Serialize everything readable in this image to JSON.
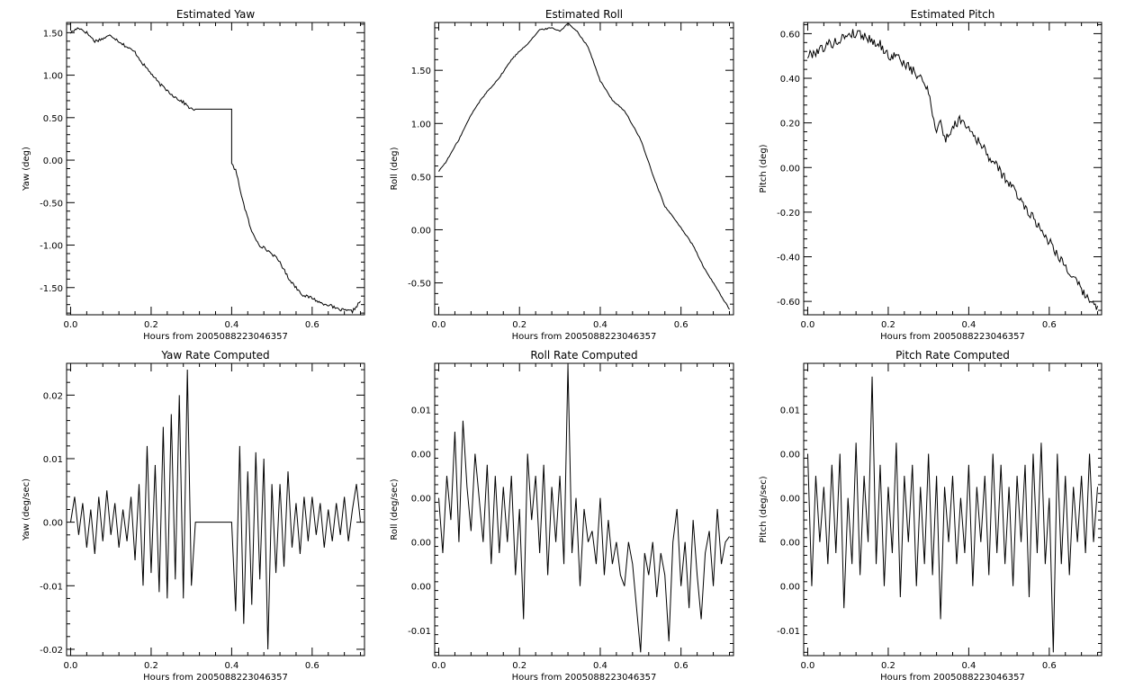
{
  "chart_data": [
    {
      "type": "line",
      "title": "Estimated Yaw",
      "xlabel": "Hours from 2005088223046357",
      "ylabel": "Yaw (deg)",
      "xlim": [
        -0.01,
        0.73
      ],
      "ylim": [
        -1.82,
        1.62
      ],
      "xticks": [
        0.0,
        0.2,
        0.4,
        0.6
      ],
      "xtick_labels": [
        "0.0",
        "0.2",
        "0.4",
        "0.6"
      ],
      "yticks": [
        1.5,
        1.0,
        0.5,
        0.0,
        -0.5,
        -1.0,
        -1.5
      ],
      "ytick_labels": [
        "1.50",
        "1.00",
        "0.50",
        "0.00",
        "-0.50",
        "-1.00",
        "-1.50"
      ],
      "noise": 0.018,
      "series": [
        {
          "x": [
            0.0,
            0.02,
            0.04,
            0.06,
            0.08,
            0.1,
            0.12,
            0.14,
            0.16,
            0.18,
            0.2,
            0.22,
            0.24,
            0.26,
            0.28,
            0.3,
            0.31,
            0.35,
            0.4,
            0.4,
            0.41,
            0.43,
            0.45,
            0.47,
            0.5,
            0.52,
            0.54,
            0.56,
            0.58,
            0.6,
            0.62,
            0.64,
            0.66,
            0.68,
            0.7,
            0.72
          ],
          "values": [
            1.5,
            1.56,
            1.5,
            1.4,
            1.43,
            1.47,
            1.4,
            1.33,
            1.27,
            1.13,
            1.02,
            0.9,
            0.82,
            0.74,
            0.68,
            0.6,
            0.6,
            0.6,
            0.6,
            -0.05,
            -0.12,
            -0.52,
            -0.85,
            -1.0,
            -1.1,
            -1.2,
            -1.38,
            -1.5,
            -1.6,
            -1.62,
            -1.68,
            -1.7,
            -1.75,
            -1.77,
            -1.78,
            -1.66
          ]
        }
      ]
    },
    {
      "type": "line",
      "title": "Estimated Roll",
      "xlabel": "Hours from 2005088223046357",
      "ylabel": "Roll (deg)",
      "xlim": [
        -0.01,
        0.73
      ],
      "ylim": [
        -0.8,
        1.95
      ],
      "xticks": [
        0.0,
        0.2,
        0.4,
        0.6
      ],
      "xtick_labels": [
        "0.0",
        "0.2",
        "0.4",
        "0.6"
      ],
      "yticks": [
        1.5,
        1.0,
        0.5,
        0.0,
        -0.5
      ],
      "ytick_labels": [
        "1.50",
        "1.00",
        "0.50",
        "0.00",
        "-0.50"
      ],
      "noise": 0.006,
      "series": [
        {
          "x": [
            0.0,
            0.02,
            0.05,
            0.08,
            0.1,
            0.12,
            0.15,
            0.18,
            0.2,
            0.22,
            0.25,
            0.28,
            0.3,
            0.32,
            0.34,
            0.37,
            0.4,
            0.43,
            0.46,
            0.5,
            0.53,
            0.56,
            0.6,
            0.63,
            0.66,
            0.69,
            0.72
          ],
          "values": [
            0.55,
            0.65,
            0.85,
            1.08,
            1.2,
            1.3,
            1.43,
            1.6,
            1.68,
            1.75,
            1.88,
            1.9,
            1.87,
            1.94,
            1.88,
            1.72,
            1.4,
            1.22,
            1.12,
            0.85,
            0.52,
            0.22,
            0.02,
            -0.15,
            -0.38,
            -0.56,
            -0.75
          ]
        }
      ]
    },
    {
      "type": "line",
      "title": "Estimated Pitch",
      "xlabel": "Hours from 2005088223046357",
      "ylabel": "Pitch (deg)",
      "xlim": [
        -0.01,
        0.73
      ],
      "ylim": [
        -0.66,
        0.65
      ],
      "xticks": [
        0.0,
        0.2,
        0.4,
        0.6
      ],
      "xtick_labels": [
        "0.0",
        "0.2",
        "0.4",
        "0.6"
      ],
      "yticks": [
        0.6,
        0.4,
        0.2,
        0.0,
        -0.2,
        -0.4,
        -0.6
      ],
      "ytick_labels": [
        "0.60",
        "0.40",
        "0.20",
        "0.00",
        "-0.20",
        "-0.40",
        "-0.60"
      ],
      "noise": 0.022,
      "series": [
        {
          "x": [
            0.0,
            0.02,
            0.05,
            0.08,
            0.1,
            0.13,
            0.15,
            0.18,
            0.2,
            0.22,
            0.25,
            0.28,
            0.3,
            0.31,
            0.32,
            0.33,
            0.34,
            0.36,
            0.38,
            0.4,
            0.45,
            0.5,
            0.55,
            0.6,
            0.65,
            0.68,
            0.7,
            0.72
          ],
          "values": [
            0.5,
            0.52,
            0.55,
            0.57,
            0.6,
            0.6,
            0.58,
            0.55,
            0.5,
            0.5,
            0.45,
            0.4,
            0.35,
            0.25,
            0.15,
            0.22,
            0.12,
            0.18,
            0.22,
            0.18,
            0.05,
            -0.07,
            -0.2,
            -0.33,
            -0.47,
            -0.55,
            -0.6,
            -0.62
          ]
        }
      ]
    },
    {
      "type": "line",
      "title": "Yaw Rate Computed",
      "xlabel": "Hours from 2005088223046357",
      "ylabel": "Yaw (deg/sec)",
      "xlim": [
        -0.01,
        0.73
      ],
      "ylim": [
        -0.021,
        0.025
      ],
      "xticks": [
        0.0,
        0.2,
        0.4,
        0.6
      ],
      "xtick_labels": [
        "0.0",
        "0.2",
        "0.4",
        "0.6"
      ],
      "yticks": [
        0.02,
        0.01,
        0.0,
        -0.01,
        -0.02
      ],
      "ytick_labels": [
        "0.02",
        "0.01",
        "0.00",
        "-0.01",
        "-0.02"
      ],
      "series": [
        {
          "x": [
            0.0,
            0.01,
            0.02,
            0.03,
            0.04,
            0.05,
            0.06,
            0.07,
            0.08,
            0.09,
            0.1,
            0.11,
            0.12,
            0.13,
            0.14,
            0.15,
            0.16,
            0.17,
            0.18,
            0.19,
            0.2,
            0.21,
            0.22,
            0.23,
            0.24,
            0.25,
            0.26,
            0.27,
            0.28,
            0.29,
            0.3,
            0.31,
            0.35,
            0.4,
            0.41,
            0.42,
            0.43,
            0.44,
            0.45,
            0.46,
            0.47,
            0.48,
            0.49,
            0.5,
            0.51,
            0.52,
            0.53,
            0.54,
            0.55,
            0.56,
            0.57,
            0.58,
            0.59,
            0.6,
            0.61,
            0.62,
            0.63,
            0.64,
            0.65,
            0.66,
            0.67,
            0.68,
            0.69,
            0.7,
            0.71,
            0.72
          ],
          "values": [
            0.0,
            0.004,
            -0.002,
            0.003,
            -0.004,
            0.002,
            -0.005,
            0.004,
            -0.003,
            0.005,
            -0.002,
            0.003,
            -0.004,
            0.002,
            -0.003,
            0.004,
            -0.006,
            0.006,
            -0.01,
            0.012,
            -0.008,
            0.009,
            -0.011,
            0.015,
            -0.012,
            0.017,
            -0.009,
            0.02,
            -0.012,
            0.024,
            -0.01,
            0.0,
            0.0,
            0.0,
            -0.014,
            0.012,
            -0.016,
            0.008,
            -0.013,
            0.011,
            -0.009,
            0.01,
            -0.02,
            0.006,
            -0.008,
            0.006,
            -0.007,
            0.008,
            -0.004,
            0.003,
            -0.005,
            0.004,
            -0.003,
            0.004,
            -0.002,
            0.003,
            -0.004,
            0.002,
            -0.003,
            0.003,
            -0.002,
            0.004,
            -0.003,
            0.002,
            0.006,
            0.0
          ]
        }
      ]
    },
    {
      "type": "line",
      "title": "Roll Rate Computed",
      "xlabel": "Hours from 2005088223046357",
      "ylabel": "Roll (deg/sec)",
      "xlim": [
        -0.01,
        0.73
      ],
      "ylim": [
        -0.0123,
        0.0142
      ],
      "xticks": [
        0.0,
        0.2,
        0.4,
        0.6
      ],
      "xtick_labels": [
        "0.0",
        "0.2",
        "0.4",
        "0.6"
      ],
      "yticks": [
        0.01,
        0.006,
        0.002,
        -0.002,
        -0.006,
        -0.01
      ],
      "ytick_labels": [
        "0.01",
        "0.00",
        "0.00",
        "0.00",
        "0.00",
        "-0.01"
      ],
      "series": [
        {
          "x": [
            0.0,
            0.01,
            0.02,
            0.03,
            0.04,
            0.05,
            0.06,
            0.07,
            0.08,
            0.09,
            0.1,
            0.11,
            0.12,
            0.13,
            0.14,
            0.15,
            0.16,
            0.17,
            0.18,
            0.19,
            0.2,
            0.21,
            0.22,
            0.23,
            0.24,
            0.25,
            0.26,
            0.27,
            0.28,
            0.29,
            0.3,
            0.31,
            0.32,
            0.33,
            0.34,
            0.35,
            0.36,
            0.37,
            0.38,
            0.39,
            0.4,
            0.41,
            0.42,
            0.43,
            0.44,
            0.45,
            0.46,
            0.47,
            0.48,
            0.49,
            0.5,
            0.51,
            0.52,
            0.53,
            0.54,
            0.55,
            0.56,
            0.57,
            0.58,
            0.59,
            0.6,
            0.61,
            0.62,
            0.63,
            0.64,
            0.65,
            0.66,
            0.67,
            0.68,
            0.69,
            0.7,
            0.71,
            0.72
          ],
          "values": [
            0.002,
            -0.003,
            0.004,
            0.0,
            0.008,
            -0.002,
            0.009,
            0.003,
            -0.001,
            0.006,
            0.002,
            -0.002,
            0.005,
            -0.004,
            0.004,
            -0.003,
            0.003,
            -0.002,
            0.004,
            -0.005,
            0.001,
            -0.009,
            0.006,
            0.0,
            0.004,
            -0.003,
            0.005,
            -0.005,
            0.003,
            -0.002,
            0.004,
            -0.004,
            0.014,
            -0.003,
            0.002,
            -0.006,
            0.001,
            -0.002,
            -0.001,
            -0.004,
            0.002,
            -0.005,
            0.0,
            -0.004,
            -0.002,
            -0.005,
            -0.006,
            -0.002,
            -0.004,
            -0.008,
            -0.012,
            -0.003,
            -0.005,
            -0.002,
            -0.007,
            -0.003,
            -0.005,
            -0.011,
            -0.002,
            0.001,
            -0.006,
            -0.002,
            -0.008,
            0.0,
            -0.005,
            -0.009,
            -0.003,
            -0.001,
            -0.006,
            0.001,
            -0.004,
            -0.002,
            -0.0015
          ]
        }
      ]
    },
    {
      "type": "line",
      "title": "Pitch Rate Computed",
      "xlabel": "Hours from 2005088223046357",
      "ylabel": "Pitch (deg/sec)",
      "xlim": [
        -0.01,
        0.73
      ],
      "ylim": [
        -0.0123,
        0.0142
      ],
      "xticks": [
        0.0,
        0.2,
        0.4,
        0.6
      ],
      "xtick_labels": [
        "0.0",
        "0.2",
        "0.4",
        "0.6"
      ],
      "yticks": [
        0.01,
        0.006,
        0.002,
        -0.002,
        -0.006,
        -0.01
      ],
      "ytick_labels": [
        "0.01",
        "0.00",
        "0.00",
        "0.00",
        "0.00",
        "-0.01"
      ],
      "series": [
        {
          "x": [
            0.0,
            0.01,
            0.02,
            0.03,
            0.04,
            0.05,
            0.06,
            0.07,
            0.08,
            0.09,
            0.1,
            0.11,
            0.12,
            0.13,
            0.14,
            0.15,
            0.16,
            0.17,
            0.18,
            0.19,
            0.2,
            0.21,
            0.22,
            0.23,
            0.24,
            0.25,
            0.26,
            0.27,
            0.28,
            0.29,
            0.3,
            0.31,
            0.32,
            0.33,
            0.34,
            0.35,
            0.36,
            0.37,
            0.38,
            0.39,
            0.4,
            0.41,
            0.42,
            0.43,
            0.44,
            0.45,
            0.46,
            0.47,
            0.48,
            0.49,
            0.5,
            0.51,
            0.52,
            0.53,
            0.54,
            0.55,
            0.56,
            0.57,
            0.58,
            0.59,
            0.6,
            0.61,
            0.62,
            0.63,
            0.64,
            0.65,
            0.66,
            0.67,
            0.68,
            0.69,
            0.7,
            0.71,
            0.72
          ],
          "values": [
            0.006,
            -0.006,
            0.004,
            -0.002,
            0.003,
            -0.004,
            0.005,
            -0.003,
            0.006,
            -0.008,
            0.002,
            -0.004,
            0.007,
            -0.005,
            0.004,
            -0.002,
            0.013,
            -0.004,
            0.005,
            -0.006,
            0.003,
            -0.003,
            0.007,
            -0.007,
            0.004,
            -0.002,
            0.005,
            -0.006,
            0.003,
            -0.004,
            0.006,
            -0.005,
            0.004,
            -0.009,
            0.003,
            -0.002,
            0.004,
            -0.004,
            0.002,
            -0.003,
            0.005,
            -0.006,
            0.003,
            -0.002,
            0.004,
            -0.005,
            0.006,
            -0.003,
            0.005,
            -0.004,
            0.003,
            -0.006,
            0.004,
            -0.002,
            0.005,
            -0.007,
            0.006,
            -0.003,
            0.007,
            -0.004,
            0.002,
            -0.012,
            0.006,
            -0.004,
            0.004,
            -0.005,
            0.003,
            -0.002,
            0.004,
            -0.003,
            0.006,
            -0.002,
            0.003
          ]
        }
      ]
    }
  ]
}
